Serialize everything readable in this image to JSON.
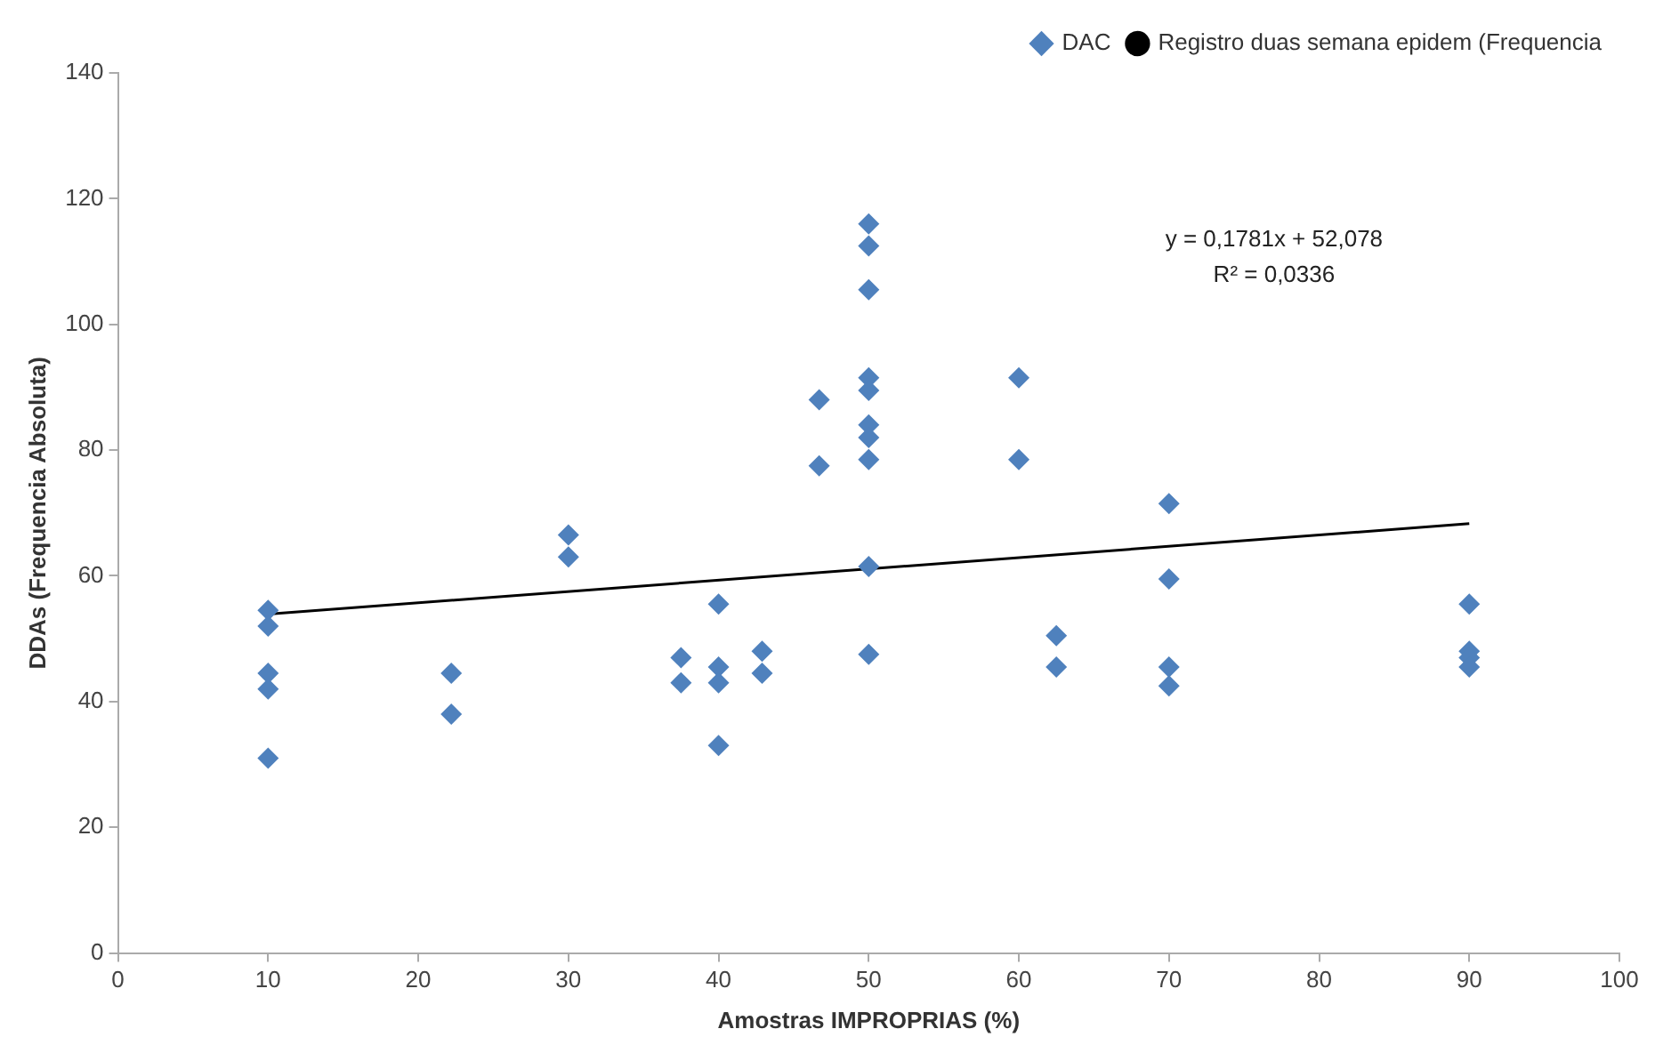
{
  "chart_data": {
    "type": "scatter",
    "xlabel": "Amostras IMPROPRIAS (%)",
    "ylabel": "DDAs (Frequencia Absoluta)",
    "xlim": [
      0,
      100
    ],
    "xticks": [
      0,
      10,
      20,
      30,
      40,
      50,
      60,
      70,
      80,
      90,
      100
    ],
    "ylim": [
      0,
      140
    ],
    "yticks": [
      0,
      20,
      40,
      60,
      80,
      100,
      120,
      140
    ],
    "grid": false,
    "legend": "top right",
    "marker": "diamond",
    "annotations": [
      "y = 0,1781x + 52,078",
      "R² = 0,0336"
    ],
    "series": [
      {
        "name": "DAC",
        "color": "#4f81bd",
        "x": [
          10,
          10,
          10,
          10,
          10,
          22.2,
          22.2,
          30,
          30,
          37.5,
          37.5,
          40,
          40,
          40,
          40,
          42.9,
          42.9,
          46.7,
          46.7,
          50,
          50,
          50,
          50,
          50,
          50,
          50,
          50,
          50,
          50,
          60,
          60,
          62.5,
          62.5,
          70,
          70,
          70,
          70,
          90,
          90,
          90,
          90
        ],
        "values": [
          54.5,
          52,
          44.5,
          42,
          31,
          44.5,
          38,
          66.5,
          63,
          47,
          43,
          55.5,
          45.5,
          43,
          33,
          48,
          44.5,
          88,
          77.5,
          116,
          112.5,
          105.5,
          91.5,
          89.5,
          84,
          82,
          78.5,
          61.5,
          47.5,
          91.5,
          78.5,
          50.5,
          45.5,
          71.5,
          59.5,
          45.5,
          42.5,
          55.5,
          48,
          47,
          45.5
        ]
      },
      {
        "name": "Registro duas semana epidem (Frequencia",
        "type": "line",
        "color": "#000000",
        "marker": "none",
        "line_style": "solid",
        "x": [
          10,
          90
        ],
        "values": [
          53.9,
          68.3
        ]
      }
    ]
  }
}
